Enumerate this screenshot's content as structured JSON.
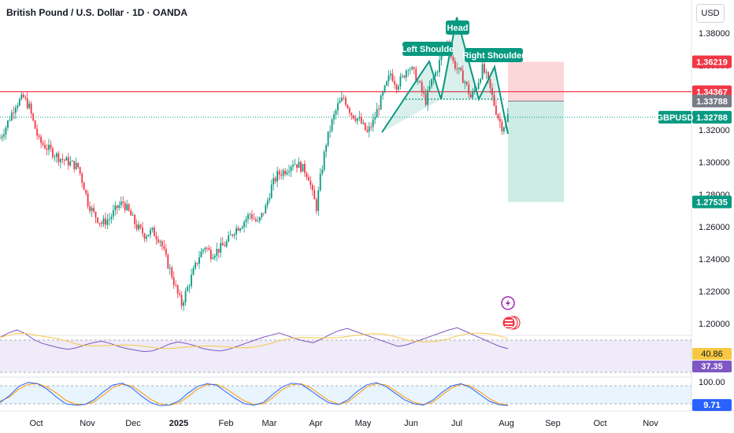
{
  "header": {
    "title": "British Pound / U.S. Dollar · 1D · OANDA",
    "currency": "USD"
  },
  "colors": {
    "up": "#089981",
    "down": "#f23645",
    "accent": "#2962ff",
    "rsi_line": "#7e57c2",
    "rsi_ma": "#f7c843"
  },
  "icons": [
    "lightning-icon",
    "flag-icon"
  ],
  "chart_data": [
    {
      "type": "candlestick",
      "symbol": "GBPUSD",
      "y_ticks": [
        "1.38000",
        "1.36000",
        "1.34000",
        "1.32000",
        "1.30000",
        "1.28000",
        "1.26000",
        "1.24000",
        "1.22000",
        "1.20000"
      ],
      "ylim": [
        1.19,
        1.395
      ],
      "x_ticks": [
        "Oct",
        "Nov",
        "Dec",
        "2025",
        "Feb",
        "Mar",
        "Apr",
        "May",
        "Jun",
        "Jul",
        "Aug",
        "Sep",
        "Oct",
        "Nov"
      ],
      "price_path": [
        [
          0,
          1.315
        ],
        [
          3,
          1.322
        ],
        [
          8,
          1.336
        ],
        [
          12,
          1.34
        ],
        [
          15,
          1.334
        ],
        [
          17,
          1.325
        ],
        [
          20,
          1.313
        ],
        [
          25,
          1.308
        ],
        [
          30,
          1.303
        ],
        [
          35,
          1.3
        ],
        [
          40,
          1.297
        ],
        [
          43,
          1.285
        ],
        [
          45,
          1.275
        ],
        [
          48,
          1.268
        ],
        [
          52,
          1.262
        ],
        [
          56,
          1.265
        ],
        [
          60,
          1.272
        ],
        [
          63,
          1.275
        ],
        [
          66,
          1.269
        ],
        [
          70,
          1.26
        ],
        [
          74,
          1.255
        ],
        [
          78,
          1.257
        ],
        [
          82,
          1.252
        ],
        [
          85,
          1.24
        ],
        [
          88,
          1.23
        ],
        [
          91,
          1.218
        ],
        [
          93,
          1.212
        ],
        [
          96,
          1.222
        ],
        [
          99,
          1.232
        ],
        [
          102,
          1.242
        ],
        [
          105,
          1.248
        ],
        [
          108,
          1.243
        ],
        [
          112,
          1.246
        ],
        [
          116,
          1.25
        ],
        [
          120,
          1.258
        ],
        [
          124,
          1.262
        ],
        [
          128,
          1.268
        ],
        [
          132,
          1.262
        ],
        [
          136,
          1.272
        ],
        [
          139,
          1.285
        ],
        [
          142,
          1.292
        ],
        [
          146,
          1.295
        ],
        [
          150,
          1.3
        ],
        [
          153,
          1.298
        ],
        [
          156,
          1.295
        ],
        [
          158,
          1.291
        ],
        [
          160,
          1.28
        ],
        [
          162,
          1.272
        ],
        [
          164,
          1.29
        ],
        [
          167,
          1.312
        ],
        [
          170,
          1.325
        ],
        [
          173,
          1.335
        ],
        [
          176,
          1.34
        ],
        [
          180,
          1.33
        ],
        [
          184,
          1.326
        ],
        [
          188,
          1.318
        ],
        [
          191,
          1.325
        ],
        [
          194,
          1.335
        ],
        [
          197,
          1.345
        ],
        [
          200,
          1.355
        ],
        [
          203,
          1.348
        ],
        [
          206,
          1.352
        ],
        [
          209,
          1.36
        ],
        [
          212,
          1.355
        ],
        [
          215,
          1.347
        ],
        [
          218,
          1.338
        ],
        [
          221,
          1.35
        ],
        [
          224,
          1.358
        ],
        [
          227,
          1.37
        ],
        [
          229,
          1.374
        ],
        [
          232,
          1.362
        ],
        [
          235,
          1.356
        ],
        [
          238,
          1.35
        ],
        [
          241,
          1.34
        ],
        [
          244,
          1.347
        ],
        [
          247,
          1.358
        ],
        [
          249,
          1.353
        ],
        [
          251,
          1.345
        ],
        [
          253,
          1.336
        ],
        [
          255,
          1.328
        ],
        [
          257,
          1.322
        ],
        [
          259,
          1.324
        ],
        [
          260,
          1.329
        ]
      ],
      "trade_setup": {
        "stop_loss": "1.36219",
        "entry": "1.33788",
        "target": "1.27535"
      },
      "horizontal_level": "1.34367",
      "last_price": "1.32788",
      "annotations": [
        "Left Shoulde",
        "Head",
        "Right Shoulder"
      ]
    },
    {
      "type": "line",
      "indicator": "RSI",
      "values": [
        52,
        58,
        62,
        57,
        49,
        44,
        41,
        38,
        36,
        38,
        42,
        45,
        47,
        44,
        40,
        37,
        35,
        33,
        34,
        38,
        43,
        46,
        44,
        41,
        37,
        35,
        34,
        36,
        40,
        44,
        48,
        52,
        55,
        58,
        54,
        50,
        47,
        45,
        50,
        56,
        61,
        64,
        60,
        56,
        52,
        48,
        44,
        40,
        42,
        46,
        50,
        54,
        58,
        62,
        65,
        60,
        55,
        50,
        45,
        40,
        37
      ],
      "value": "40.86",
      "ma_value": "37.35"
    },
    {
      "type": "line",
      "indicator": "Stochastic",
      "k_values": [
        20,
        45,
        80,
        95,
        90,
        70,
        40,
        15,
        10,
        12,
        30,
        60,
        85,
        92,
        75,
        45,
        20,
        8,
        10,
        25,
        55,
        80,
        90,
        85,
        60,
        35,
        15,
        10,
        20,
        50,
        78,
        92,
        88,
        65,
        40,
        18,
        12,
        30,
        62,
        86,
        94,
        80,
        55,
        30,
        15,
        10,
        28,
        58,
        82,
        90,
        76,
        50,
        25,
        12,
        8
      ],
      "d_values": [
        25,
        40,
        70,
        88,
        90,
        78,
        55,
        28,
        14,
        12,
        22,
        48,
        76,
        88,
        82,
        58,
        32,
        14,
        10,
        18,
        42,
        70,
        86,
        88,
        72,
        48,
        25,
        12,
        15,
        38,
        68,
        86,
        90,
        75,
        50,
        26,
        14,
        22,
        50,
        78,
        90,
        86,
        64,
        40,
        20,
        12,
        20,
        48,
        74,
        88,
        82,
        60,
        35,
        16,
        10
      ],
      "top_level": "100.00",
      "value": "9.71"
    }
  ]
}
